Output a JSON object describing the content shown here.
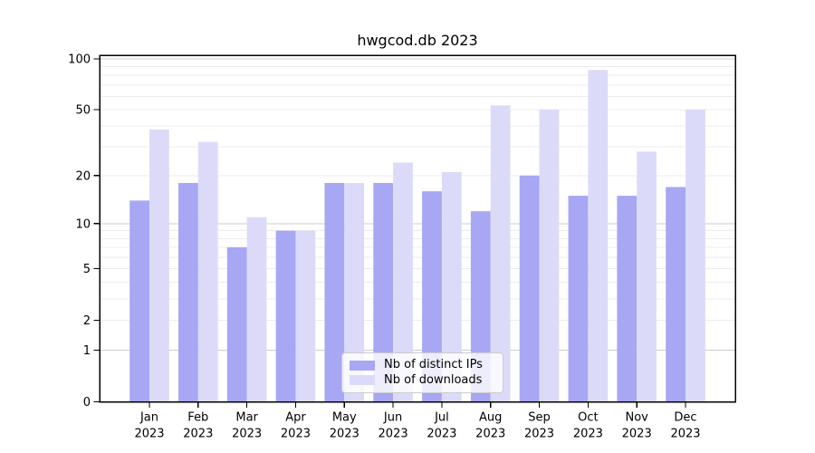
{
  "title": "hwgcod.db 2023",
  "legend": {
    "items": [
      {
        "label": "Nb of distinct IPs",
        "color": "#a7a7f4"
      },
      {
        "label": "Nb of downloads",
        "color": "#dbdbf9"
      }
    ]
  },
  "chart_data": {
    "type": "bar",
    "title": "hwgcod.db 2023",
    "categories": [
      "Jan",
      "Feb",
      "Mar",
      "Apr",
      "May",
      "Jun",
      "Jul",
      "Aug",
      "Sep",
      "Oct",
      "Nov",
      "Dec"
    ],
    "category_year": "2023",
    "series": [
      {
        "name": "Nb of distinct IPs",
        "color": "#a7a7f4",
        "values": [
          14,
          18,
          7,
          9,
          18,
          18,
          16,
          12,
          20,
          15,
          15,
          17
        ]
      },
      {
        "name": "Nb of downloads",
        "color": "#dbdbf9",
        "values": [
          38,
          32,
          11,
          9,
          18,
          24,
          21,
          53,
          50,
          86,
          28,
          50
        ]
      }
    ],
    "xlabel": "",
    "ylabel": "",
    "yscale": "log1p",
    "ylim": [
      0,
      105
    ],
    "yticks": [
      0,
      1,
      2,
      5,
      10,
      20,
      50,
      100
    ],
    "major_gridlines": [
      1,
      10,
      100
    ],
    "minor_gridlines": [
      2,
      3,
      4,
      5,
      6,
      7,
      8,
      9,
      20,
      30,
      40,
      50,
      60,
      70,
      80,
      90
    ],
    "grid": "on",
    "legend_position": "lower center",
    "colors": {
      "major_grid": "#cccccc",
      "minor_grid": "#ececec",
      "axis": "#000000",
      "tick_text": "#000000",
      "background": "#ffffff"
    }
  }
}
